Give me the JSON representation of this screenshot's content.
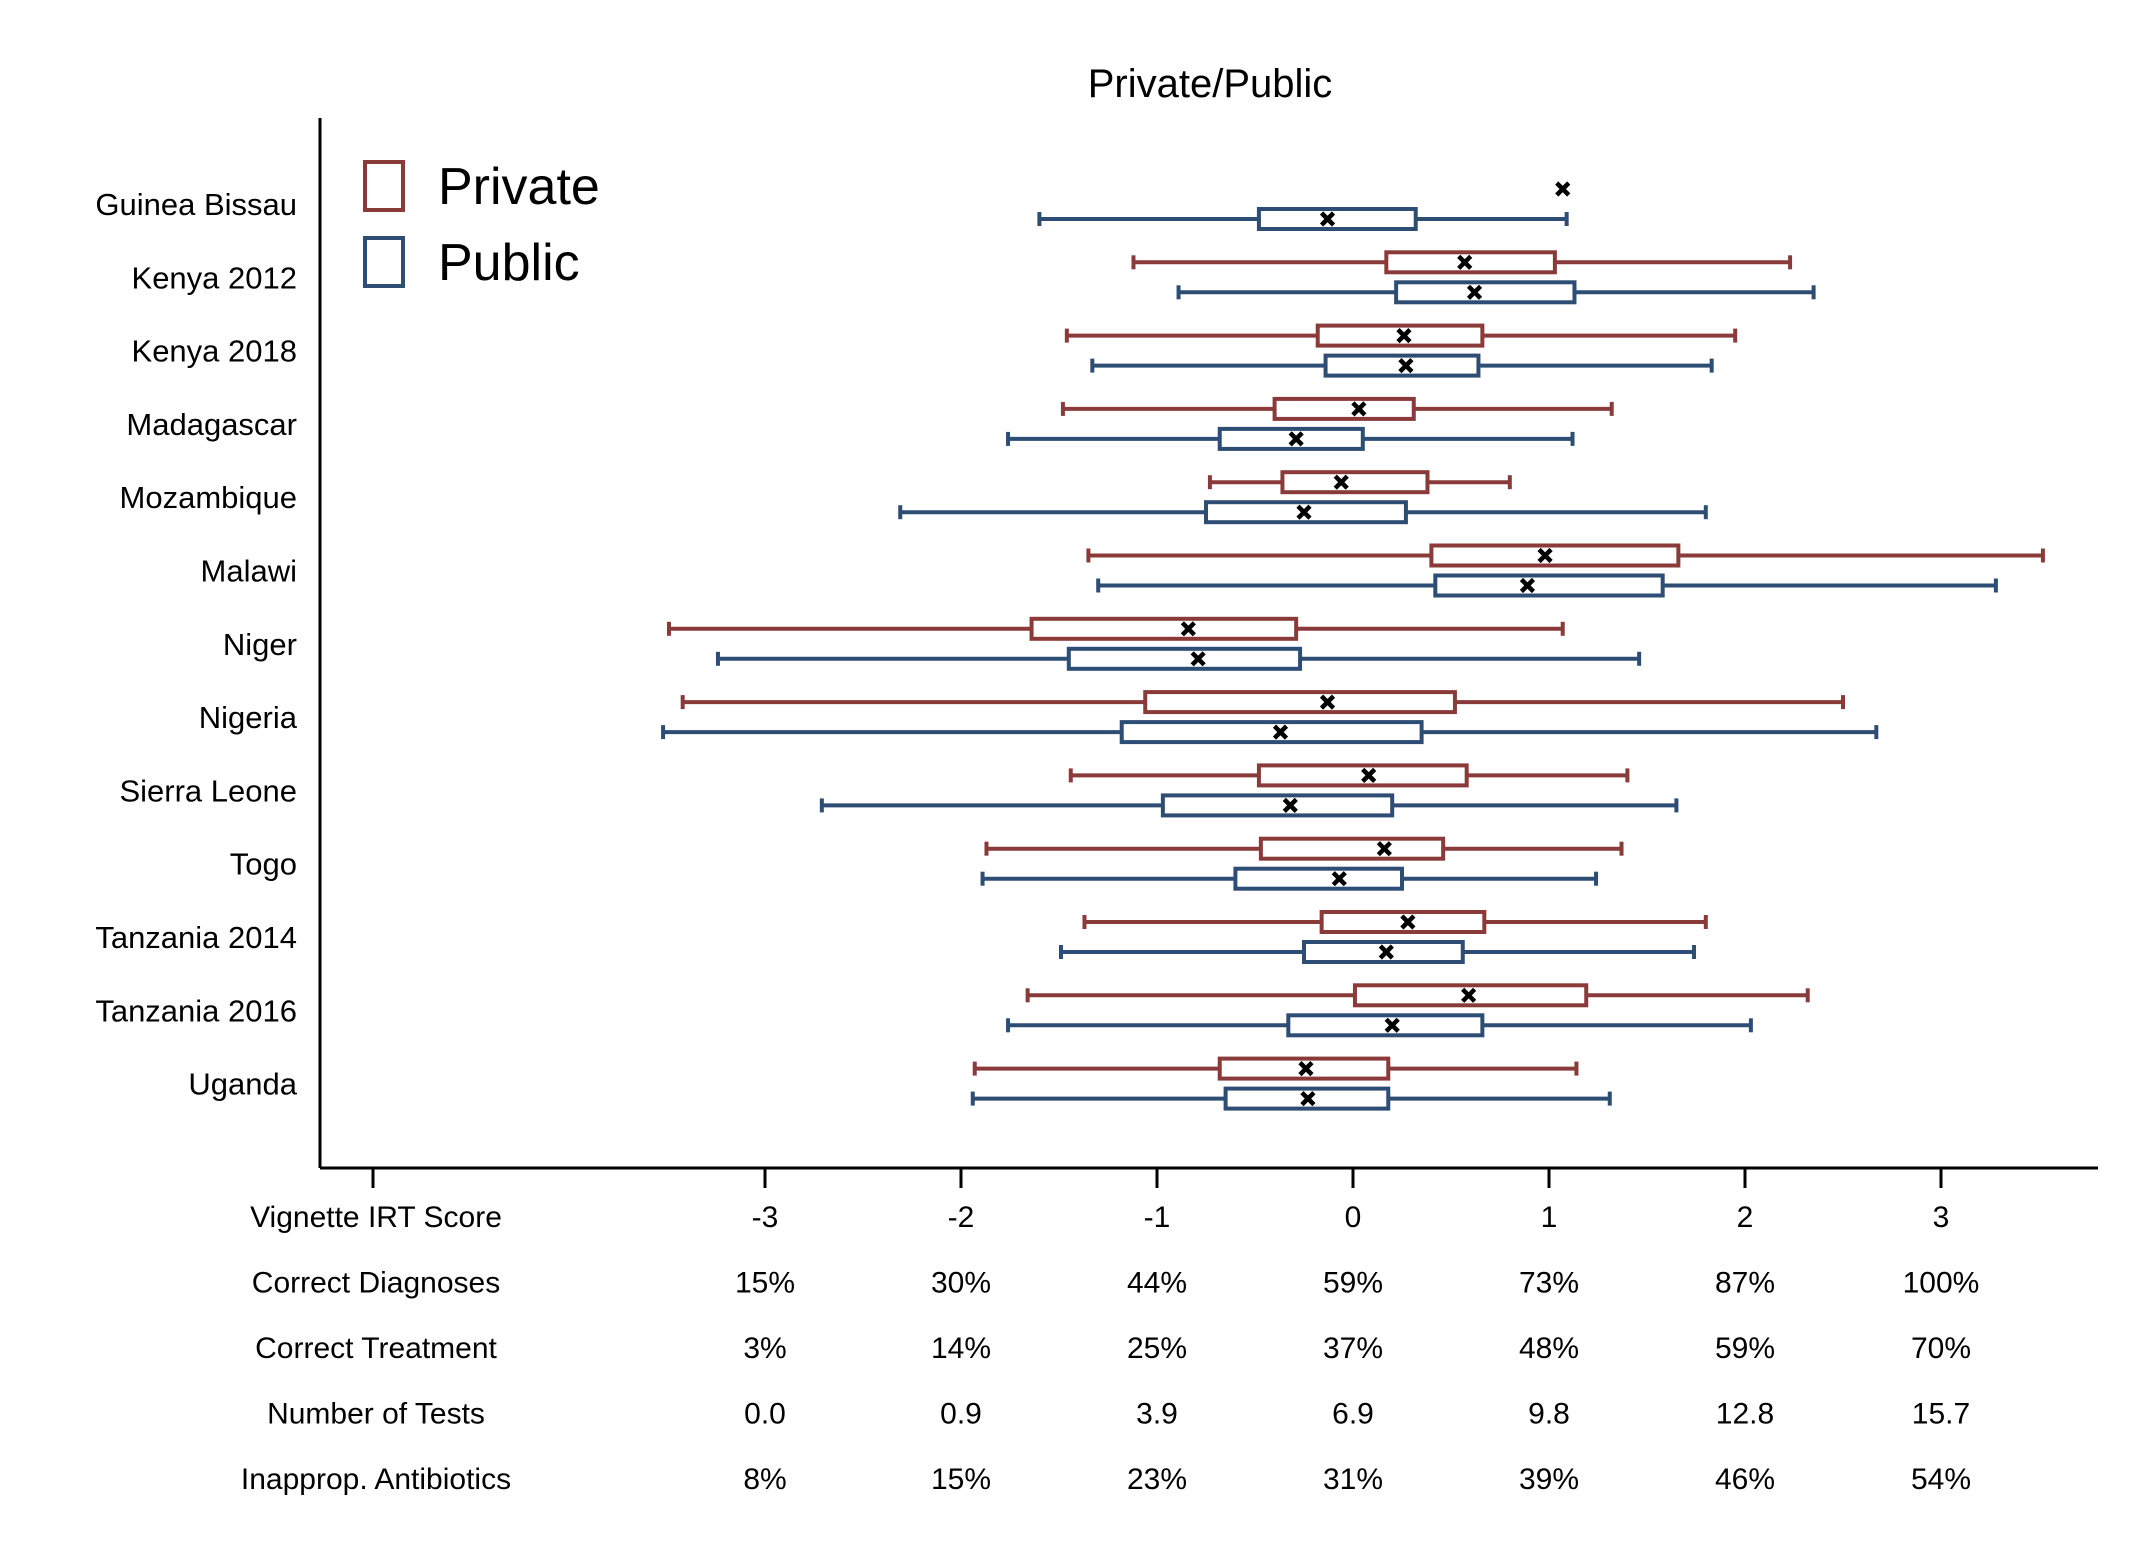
{
  "chart_data": {
    "type": "box",
    "title": "Private/Public",
    "xlim": [
      -4,
      3.8
    ],
    "categories": [
      "Guinea Bissau",
      "Kenya 2012",
      "Kenya 2018",
      "Madagascar",
      "Mozambique",
      "Malawi",
      "Niger",
      "Nigeria",
      "Sierra Leone",
      "Togo",
      "Tanzania 2014",
      "Tanzania 2016",
      "Uganda"
    ],
    "series": [
      {
        "name": "Private",
        "color": "#8b3a3a",
        "boxes": [
          {
            "mean": 1.07
          },
          {
            "whisker_low": -1.12,
            "q1": 0.17,
            "q3": 1.03,
            "whisker_high": 2.23,
            "mean": 0.57
          },
          {
            "whisker_low": -1.46,
            "q1": -0.18,
            "q3": 0.66,
            "whisker_high": 1.95,
            "mean": 0.26
          },
          {
            "whisker_low": -1.48,
            "q1": -0.4,
            "q3": 0.31,
            "whisker_high": 1.32,
            "mean": 0.03
          },
          {
            "whisker_low": -0.73,
            "q1": -0.36,
            "q3": 0.38,
            "whisker_high": 0.8,
            "mean": -0.06
          },
          {
            "whisker_low": -1.35,
            "q1": 0.4,
            "q3": 1.66,
            "whisker_high": 3.52,
            "mean": 0.98
          },
          {
            "whisker_low": -3.49,
            "q1": -1.64,
            "q3": -0.29,
            "whisker_high": 1.07,
            "mean": -0.84
          },
          {
            "whisker_low": -3.42,
            "q1": -1.06,
            "q3": 0.52,
            "whisker_high": 2.5,
            "mean": -0.13
          },
          {
            "whisker_low": -1.44,
            "q1": -0.48,
            "q3": 0.58,
            "whisker_high": 1.4,
            "mean": 0.08
          },
          {
            "whisker_low": -1.87,
            "q1": -0.47,
            "q3": 0.46,
            "whisker_high": 1.37,
            "mean": 0.16
          },
          {
            "whisker_low": -1.37,
            "q1": -0.16,
            "q3": 0.67,
            "whisker_high": 1.8,
            "mean": 0.28
          },
          {
            "whisker_low": -1.66,
            "q1": 0.01,
            "q3": 1.19,
            "whisker_high": 2.32,
            "mean": 0.59
          },
          {
            "whisker_low": -1.93,
            "q1": -0.68,
            "q3": 0.18,
            "whisker_high": 1.14,
            "mean": -0.24
          }
        ]
      },
      {
        "name": "Public",
        "color": "#2e4d75",
        "boxes": [
          {
            "whisker_low": -1.6,
            "q1": -0.48,
            "q3": 0.32,
            "whisker_high": 1.09,
            "mean": -0.13
          },
          {
            "whisker_low": -0.89,
            "q1": 0.22,
            "q3": 1.13,
            "whisker_high": 2.35,
            "mean": 0.62
          },
          {
            "whisker_low": -1.33,
            "q1": -0.14,
            "q3": 0.64,
            "whisker_high": 1.83,
            "mean": 0.27
          },
          {
            "whisker_low": -1.76,
            "q1": -0.68,
            "q3": 0.05,
            "whisker_high": 1.12,
            "mean": -0.29
          },
          {
            "whisker_low": -2.31,
            "q1": -0.75,
            "q3": 0.27,
            "whisker_high": 1.8,
            "mean": -0.25
          },
          {
            "whisker_low": -1.3,
            "q1": 0.42,
            "q3": 1.58,
            "whisker_high": 3.28,
            "mean": 0.89
          },
          {
            "whisker_low": -3.24,
            "q1": -1.45,
            "q3": -0.27,
            "whisker_high": 1.46,
            "mean": -0.79
          },
          {
            "whisker_low": -3.52,
            "q1": -1.18,
            "q3": 0.35,
            "whisker_high": 2.67,
            "mean": -0.37
          },
          {
            "whisker_low": -2.71,
            "q1": -0.97,
            "q3": 0.2,
            "whisker_high": 1.65,
            "mean": -0.32
          },
          {
            "whisker_low": -1.89,
            "q1": -0.6,
            "q3": 0.25,
            "whisker_high": 1.24,
            "mean": -0.07
          },
          {
            "whisker_low": -1.49,
            "q1": -0.25,
            "q3": 0.56,
            "whisker_high": 1.74,
            "mean": 0.17
          },
          {
            "whisker_low": -1.76,
            "q1": -0.33,
            "q3": 0.66,
            "whisker_high": 2.03,
            "mean": 0.2
          },
          {
            "whisker_low": -1.94,
            "q1": -0.65,
            "q3": 0.18,
            "whisker_high": 1.31,
            "mean": -0.23
          }
        ]
      }
    ],
    "legend": {
      "position": "top-left",
      "entries": [
        "Private",
        "Public"
      ]
    },
    "x_axis_ticks": [
      -3,
      -2,
      -1,
      0,
      1,
      2,
      3
    ],
    "x_tick_labels": [
      "-3",
      "-2",
      "-1",
      "0",
      "1",
      "2",
      "3"
    ],
    "grid": false,
    "scale_table": [
      {
        "label": "Vignette IRT Score",
        "values": [
          "-3",
          "-2",
          "-1",
          "0",
          "1",
          "2",
          "3"
        ]
      },
      {
        "label": "Correct Diagnoses",
        "values": [
          "15%",
          "30%",
          "44%",
          "59%",
          "73%",
          "87%",
          "100%"
        ]
      },
      {
        "label": "Correct Treatment",
        "values": [
          "3%",
          "14%",
          "25%",
          "37%",
          "48%",
          "59%",
          "70%"
        ]
      },
      {
        "label": "Number of Tests",
        "values": [
          "0.0",
          "0.9",
          "3.9",
          "6.9",
          "9.8",
          "12.8",
          "15.7"
        ]
      },
      {
        "label": "Inapprop. Antibiotics",
        "values": [
          "8%",
          "15%",
          "23%",
          "31%",
          "39%",
          "46%",
          "54%"
        ]
      }
    ]
  }
}
